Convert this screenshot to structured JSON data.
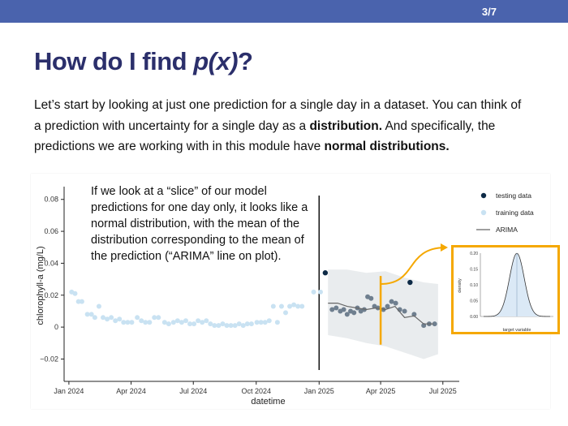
{
  "slide": {
    "number": "3/7"
  },
  "title": {
    "prefix": "How do I find ",
    "italic": "p(x)",
    "suffix": "?"
  },
  "body": {
    "t1": "Let’s start by looking at just one prediction for a single day in a dataset. You can think of a prediction with uncertainty for a single day as a ",
    "b1": "distribution.",
    "t2": " And specifically, the predictions we are working with in this module have ",
    "b2": "normal distributions."
  },
  "callout": "If we look at a “slice” of our model predictions for one day only, it looks like a normal distribution, with the mean of the distribution corresponding to the mean of the prediction (“ARIMA” line on plot).",
  "colors": {
    "header": "#4a63ad",
    "title": "#2b2f6b",
    "training": "#c9e2f2",
    "testing": "#0d2a46",
    "forecast_points": "#6f7f8f",
    "arima": "#666666",
    "band": "#e9ecee",
    "highlight": "#f5a800",
    "density_fill": "#dbe9f6"
  },
  "chart_data": [
    {
      "type": "scatter",
      "xlabel": "datetime",
      "ylabel": "chlorophyll-a (mg/L)",
      "x_ticks": [
        "Jan 2024",
        "Apr 2024",
        "Jul 2024",
        "Oct 2024",
        "Jan 2025",
        "Apr 2025",
        "Jul 2025"
      ],
      "y_ticks": [
        "−0.02",
        "0",
        "0.02",
        "0.04",
        "0.06",
        "0.08"
      ],
      "ylim": [
        -0.034,
        0.088
      ],
      "legend": {
        "position": "top-right",
        "testing": "testing data",
        "training": "training data",
        "arima": "ARIMA"
      },
      "training": [
        [
          "2024-01-05",
          0.022
        ],
        [
          "2024-01-10",
          0.021
        ],
        [
          "2024-01-15",
          0.016
        ],
        [
          "2024-01-20",
          0.016
        ],
        [
          "2024-01-28",
          0.008
        ],
        [
          "2024-02-03",
          0.008
        ],
        [
          "2024-02-08",
          0.006
        ],
        [
          "2024-02-14",
          0.013
        ],
        [
          "2024-02-20",
          0.006
        ],
        [
          "2024-02-26",
          0.005
        ],
        [
          "2024-03-03",
          0.006
        ],
        [
          "2024-03-09",
          0.004
        ],
        [
          "2024-03-15",
          0.005
        ],
        [
          "2024-03-21",
          0.003
        ],
        [
          "2024-03-27",
          0.003
        ],
        [
          "2024-04-02",
          0.003
        ],
        [
          "2024-04-10",
          0.006
        ],
        [
          "2024-04-16",
          0.004
        ],
        [
          "2024-04-22",
          0.003
        ],
        [
          "2024-04-28",
          0.003
        ],
        [
          "2024-05-05",
          0.006
        ],
        [
          "2024-05-11",
          0.006
        ],
        [
          "2024-05-20",
          0.003
        ],
        [
          "2024-05-26",
          0.002
        ],
        [
          "2024-06-02",
          0.003
        ],
        [
          "2024-06-08",
          0.004
        ],
        [
          "2024-06-14",
          0.003
        ],
        [
          "2024-06-20",
          0.004
        ],
        [
          "2024-06-26",
          0.002
        ],
        [
          "2024-07-02",
          0.002
        ],
        [
          "2024-07-08",
          0.004
        ],
        [
          "2024-07-14",
          0.003
        ],
        [
          "2024-07-20",
          0.004
        ],
        [
          "2024-07-26",
          0.002
        ],
        [
          "2024-08-01",
          0.001
        ],
        [
          "2024-08-07",
          0.001
        ],
        [
          "2024-08-13",
          0.002
        ],
        [
          "2024-08-19",
          0.001
        ],
        [
          "2024-08-25",
          0.001
        ],
        [
          "2024-08-31",
          0.001
        ],
        [
          "2024-09-06",
          0.002
        ],
        [
          "2024-09-12",
          0.001
        ],
        [
          "2024-09-18",
          0.002
        ],
        [
          "2024-09-24",
          0.002
        ],
        [
          "2024-10-02",
          0.003
        ],
        [
          "2024-10-08",
          0.003
        ],
        [
          "2024-10-14",
          0.003
        ],
        [
          "2024-10-20",
          0.004
        ],
        [
          "2024-10-26",
          0.013
        ],
        [
          "2024-11-01",
          0.003
        ],
        [
          "2024-11-07",
          0.013
        ],
        [
          "2024-11-13",
          0.009
        ],
        [
          "2024-11-19",
          0.013
        ],
        [
          "2024-11-25",
          0.014
        ],
        [
          "2024-12-01",
          0.013
        ],
        [
          "2024-12-07",
          0.013
        ],
        [
          "2024-12-15",
          0.083
        ],
        [
          "2024-12-24",
          0.022
        ],
        [
          "2025-01-03",
          0.022
        ]
      ],
      "testing": [
        [
          "2025-01-10",
          0.034
        ],
        [
          "2025-05-14",
          0.028
        ]
      ],
      "forecast_points": [
        [
          "2025-01-20",
          0.011
        ],
        [
          "2025-01-26",
          0.012
        ],
        [
          "2025-02-01",
          0.01
        ],
        [
          "2025-02-06",
          0.011
        ],
        [
          "2025-02-11",
          0.008
        ],
        [
          "2025-02-16",
          0.01
        ],
        [
          "2025-02-21",
          0.009
        ],
        [
          "2025-02-26",
          0.012
        ],
        [
          "2025-03-03",
          0.01
        ],
        [
          "2025-03-08",
          0.011
        ],
        [
          "2025-03-13",
          0.019
        ],
        [
          "2025-03-18",
          0.018
        ],
        [
          "2025-03-23",
          0.013
        ],
        [
          "2025-03-28",
          0.012
        ],
        [
          "2025-04-05",
          0.011
        ],
        [
          "2025-04-11",
          0.013
        ],
        [
          "2025-04-17",
          0.016
        ],
        [
          "2025-04-23",
          0.015
        ],
        [
          "2025-04-29",
          0.011
        ],
        [
          "2025-05-06",
          0.01
        ],
        [
          "2025-05-20",
          0.008
        ],
        [
          "2025-06-03",
          0.001
        ],
        [
          "2025-06-11",
          0.002
        ],
        [
          "2025-06-19",
          0.002
        ]
      ],
      "arima": [
        [
          "2025-01-14",
          0.015
        ],
        [
          "2025-01-28",
          0.015
        ],
        [
          "2025-02-11",
          0.013
        ],
        [
          "2025-02-25",
          0.012
        ],
        [
          "2025-03-11",
          0.011
        ],
        [
          "2025-03-25",
          0.012
        ],
        [
          "2025-04-08",
          0.011
        ],
        [
          "2025-04-22",
          0.013
        ],
        [
          "2025-05-06",
          0.006
        ],
        [
          "2025-05-20",
          0.007
        ],
        [
          "2025-06-03",
          0.002
        ],
        [
          "2025-06-17",
          0.002
        ]
      ],
      "band": [
        [
          "2025-01-14",
          0.036,
          -0.005
        ],
        [
          "2025-02-11",
          0.036,
          -0.007
        ],
        [
          "2025-03-11",
          0.034,
          -0.01
        ],
        [
          "2025-04-08",
          0.035,
          -0.012
        ],
        [
          "2025-05-06",
          0.031,
          -0.016
        ],
        [
          "2025-06-03",
          0.028,
          -0.02
        ],
        [
          "2025-06-24",
          0.027,
          -0.017
        ]
      ],
      "vline": "2025-01-01",
      "highlight_date": "2025-04-01"
    },
    {
      "type": "area",
      "xlabel": "target variable",
      "ylabel": "density",
      "y_ticks": [
        "0.00",
        "0.05",
        "0.10",
        "0.15",
        "0.20"
      ],
      "ylim": [
        0,
        0.2
      ],
      "mean": 0,
      "sd": 2
    }
  ]
}
